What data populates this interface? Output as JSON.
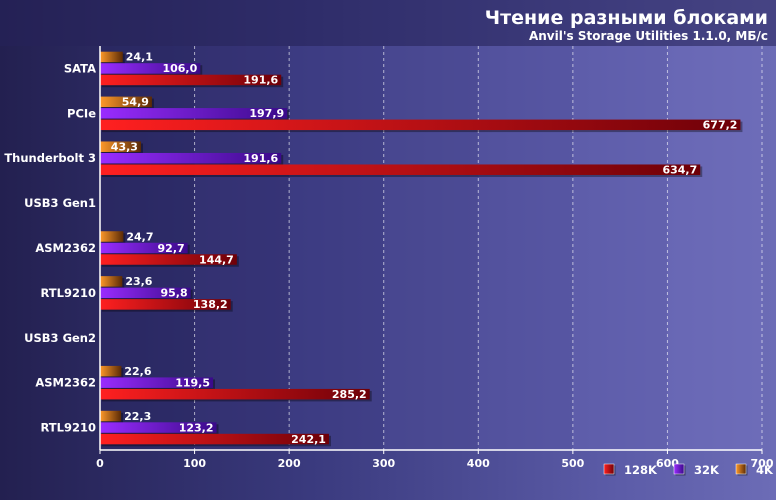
{
  "chart_data": {
    "type": "bar",
    "orientation": "horizontal",
    "title": "Чтение разными блоками",
    "subtitle": "Anvil's Storage Utilities 1.1.0, МБ/с",
    "categories": [
      "SATA",
      "PCIe",
      "Thunderbolt 3",
      "USB3 Gen1",
      "ASM2362",
      "RTL9210",
      "USB3 Gen2",
      "ASM2362",
      "RTL9210"
    ],
    "series": [
      {
        "name": "4K",
        "color": "#e07a1a",
        "values": [
          24.1,
          54.9,
          43.3,
          null,
          24.7,
          23.6,
          null,
          22.6,
          22.3
        ],
        "labels": [
          "24,1",
          "54,9",
          "43,3",
          "",
          "24,7",
          "23,6",
          "",
          "22,6",
          "22,3"
        ]
      },
      {
        "name": "32K",
        "color": "#7a1ae0",
        "values": [
          106.0,
          197.9,
          191.6,
          null,
          92.7,
          95.8,
          null,
          119.5,
          123.2
        ],
        "labels": [
          "106,0",
          "197,9",
          "191,6",
          "",
          "92,7",
          "95,8",
          "",
          "119,5",
          "123,2"
        ]
      },
      {
        "name": "128K",
        "color": "#e0101a",
        "values": [
          191.6,
          677.2,
          634.7,
          null,
          144.7,
          138.2,
          null,
          285.2,
          242.1
        ],
        "labels": [
          "191,6",
          "677,2",
          "634,7",
          "",
          "144,7",
          "138,2",
          "",
          "285,2",
          "242,1"
        ]
      }
    ],
    "x_ticks": [
      "0",
      "100",
      "200",
      "300",
      "400",
      "500",
      "600",
      "700"
    ],
    "xlim": [
      0,
      700
    ],
    "grid": true,
    "legend_position": "bottom-right",
    "legend_order": [
      "128K",
      "32K",
      "4K"
    ]
  }
}
